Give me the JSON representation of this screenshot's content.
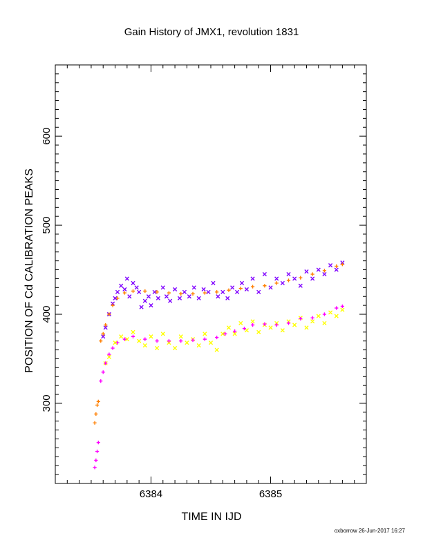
{
  "chart_data": {
    "type": "scatter",
    "title": "Gain History of JMX1, revolution 1831",
    "xlabel": "TIME IN IJD",
    "ylabel": "POSITION OF Cd CALIBRATION PEAKS",
    "xlim": [
      6383.2,
      6385.8
    ],
    "ylim": [
      210,
      680
    ],
    "x_ticks": [
      6384,
      6385
    ],
    "y_ticks": [
      300,
      400,
      500,
      600
    ],
    "grid": false,
    "series": [
      {
        "marker": "x",
        "color": "#7f00ff",
        "points": [
          [
            6383.6,
            375
          ],
          [
            6383.62,
            385
          ],
          [
            6383.65,
            400
          ],
          [
            6383.68,
            412
          ],
          [
            6383.7,
            418
          ],
          [
            6383.72,
            425
          ],
          [
            6383.75,
            432
          ],
          [
            6383.78,
            428
          ],
          [
            6383.8,
            440
          ],
          [
            6383.82,
            420
          ],
          [
            6383.85,
            435
          ],
          [
            6383.88,
            430
          ],
          [
            6383.9,
            425
          ],
          [
            6383.92,
            408
          ],
          [
            6383.95,
            415
          ],
          [
            6383.98,
            420
          ],
          [
            6384.0,
            410
          ],
          [
            6384.03,
            425
          ],
          [
            6384.06,
            418
          ],
          [
            6384.1,
            430
          ],
          [
            6384.13,
            420
          ],
          [
            6384.16,
            415
          ],
          [
            6384.2,
            428
          ],
          [
            6384.24,
            418
          ],
          [
            6384.28,
            425
          ],
          [
            6384.32,
            420
          ],
          [
            6384.36,
            430
          ],
          [
            6384.4,
            418
          ],
          [
            6384.44,
            428
          ],
          [
            6384.48,
            425
          ],
          [
            6384.52,
            435
          ],
          [
            6384.56,
            420
          ],
          [
            6384.6,
            425
          ],
          [
            6384.64,
            418
          ],
          [
            6384.68,
            430
          ],
          [
            6384.72,
            425
          ],
          [
            6384.76,
            435
          ],
          [
            6384.8,
            428
          ],
          [
            6384.85,
            440
          ],
          [
            6384.9,
            425
          ],
          [
            6384.95,
            445
          ],
          [
            6385.0,
            430
          ],
          [
            6385.05,
            440
          ],
          [
            6385.1,
            435
          ],
          [
            6385.15,
            445
          ],
          [
            6385.2,
            440
          ],
          [
            6385.25,
            432
          ],
          [
            6385.3,
            448
          ],
          [
            6385.35,
            440
          ],
          [
            6385.4,
            450
          ],
          [
            6385.45,
            445
          ],
          [
            6385.5,
            455
          ],
          [
            6385.55,
            450
          ],
          [
            6385.6,
            458
          ]
        ]
      },
      {
        "marker": "x",
        "color": "#ffff00",
        "points": [
          [
            6383.62,
            345
          ],
          [
            6383.65,
            352
          ],
          [
            6383.7,
            368
          ],
          [
            6383.75,
            375
          ],
          [
            6383.8,
            372
          ],
          [
            6383.85,
            380
          ],
          [
            6383.9,
            370
          ],
          [
            6383.95,
            365
          ],
          [
            6384.0,
            375
          ],
          [
            6384.05,
            362
          ],
          [
            6384.1,
            378
          ],
          [
            6384.15,
            368
          ],
          [
            6384.2,
            362
          ],
          [
            6384.25,
            375
          ],
          [
            6384.3,
            368
          ],
          [
            6384.35,
            372
          ],
          [
            6384.4,
            365
          ],
          [
            6384.45,
            378
          ],
          [
            6384.5,
            368
          ],
          [
            6384.55,
            360
          ],
          [
            6384.6,
            378
          ],
          [
            6384.65,
            385
          ],
          [
            6384.7,
            378
          ],
          [
            6384.75,
            390
          ],
          [
            6384.8,
            382
          ],
          [
            6384.85,
            392
          ],
          [
            6384.9,
            380
          ],
          [
            6384.95,
            388
          ],
          [
            6385.0,
            385
          ],
          [
            6385.05,
            390
          ],
          [
            6385.1,
            382
          ],
          [
            6385.15,
            392
          ],
          [
            6385.2,
            388
          ],
          [
            6385.25,
            396
          ],
          [
            6385.3,
            385
          ],
          [
            6385.35,
            392
          ],
          [
            6385.4,
            398
          ],
          [
            6385.45,
            390
          ],
          [
            6385.5,
            402
          ],
          [
            6385.55,
            398
          ],
          [
            6385.6,
            405
          ]
        ]
      },
      {
        "marker": "+",
        "color": "#ff7f00",
        "points": [
          [
            6383.53,
            278
          ],
          [
            6383.54,
            288
          ],
          [
            6383.55,
            298
          ],
          [
            6383.56,
            302
          ],
          [
            6383.58,
            370
          ],
          [
            6383.6,
            378
          ],
          [
            6383.62,
            388
          ],
          [
            6383.65,
            400
          ],
          [
            6383.68,
            410
          ],
          [
            6383.72,
            418
          ],
          [
            6383.78,
            424
          ],
          [
            6383.85,
            426
          ],
          [
            6383.95,
            426
          ],
          [
            6384.05,
            425
          ],
          [
            6384.15,
            424
          ],
          [
            6384.25,
            423
          ],
          [
            6384.35,
            423
          ],
          [
            6384.45,
            424
          ],
          [
            6384.55,
            425
          ],
          [
            6384.65,
            427
          ],
          [
            6384.75,
            429
          ],
          [
            6384.85,
            431
          ],
          [
            6384.95,
            432
          ],
          [
            6385.05,
            435
          ],
          [
            6385.15,
            438
          ],
          [
            6385.25,
            441
          ],
          [
            6385.35,
            445
          ],
          [
            6385.45,
            449
          ],
          [
            6385.55,
            454
          ],
          [
            6385.6,
            456
          ]
        ]
      },
      {
        "marker": "+",
        "color": "#ff00ff",
        "points": [
          [
            6383.53,
            228
          ],
          [
            6383.54,
            236
          ],
          [
            6383.55,
            246
          ],
          [
            6383.56,
            256
          ],
          [
            6383.58,
            325
          ],
          [
            6383.6,
            335
          ],
          [
            6383.62,
            345
          ],
          [
            6383.65,
            355
          ],
          [
            6383.68,
            362
          ],
          [
            6383.72,
            368
          ],
          [
            6383.78,
            372
          ],
          [
            6383.85,
            375
          ],
          [
            6383.95,
            372
          ],
          [
            6384.05,
            370
          ],
          [
            6384.15,
            370
          ],
          [
            6384.25,
            370
          ],
          [
            6384.35,
            371
          ],
          [
            6384.45,
            372
          ],
          [
            6384.55,
            374
          ],
          [
            6384.62,
            378
          ],
          [
            6384.7,
            381
          ],
          [
            6384.78,
            384
          ],
          [
            6384.85,
            388
          ],
          [
            6384.95,
            389
          ],
          [
            6385.05,
            388
          ],
          [
            6385.15,
            390
          ],
          [
            6385.25,
            395
          ],
          [
            6385.35,
            396
          ],
          [
            6385.45,
            400
          ],
          [
            6385.55,
            407
          ],
          [
            6385.6,
            409
          ]
        ]
      }
    ]
  },
  "footer": "oxborrow 26-Jun-2017 16:27"
}
